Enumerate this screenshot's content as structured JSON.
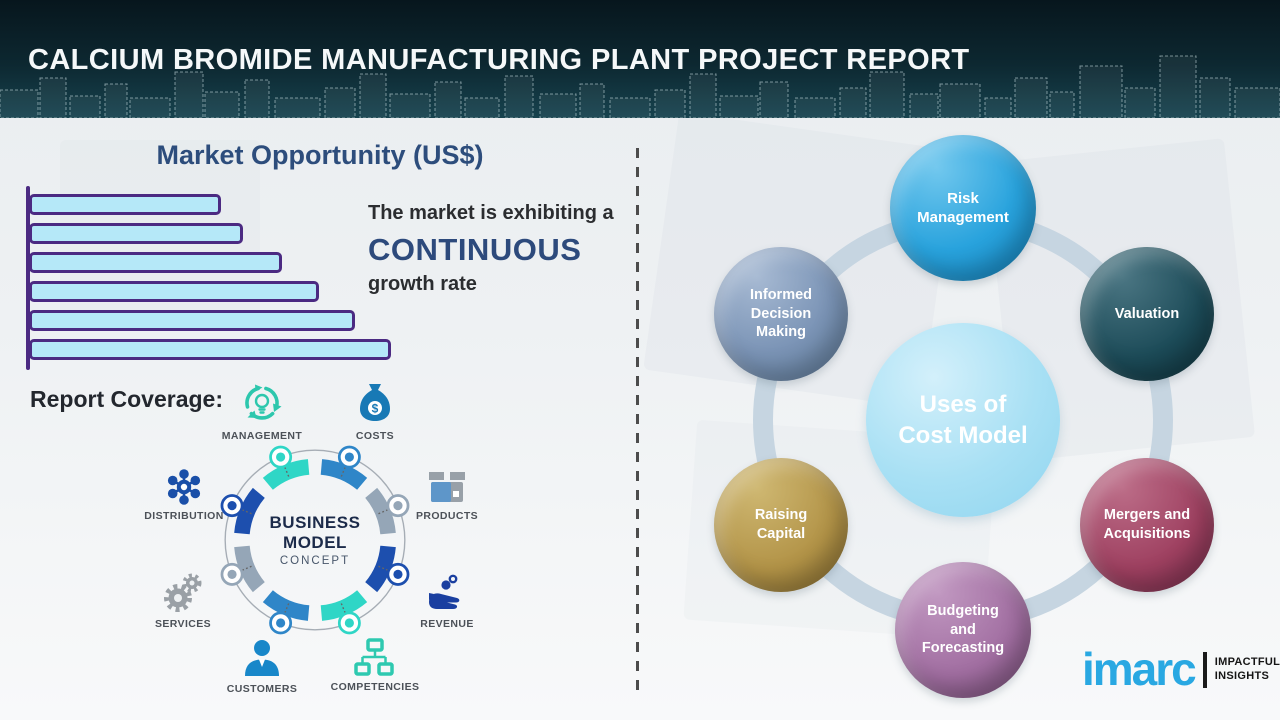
{
  "header": {
    "title": "CALCIUM BROMIDE MANUFACTURING PLANT PROJECT REPORT"
  },
  "left": {
    "section_title": "Market Opportunity (US$)",
    "note": {
      "line1": "The market is exhibiting a",
      "highlight": "CONTINUOUS",
      "line2": "growth rate"
    },
    "report_coverage_label": "Report Coverage:",
    "business_model": {
      "center_title": "BUSINESS\nMODEL",
      "center_subtitle": "CONCEPT",
      "items": [
        {
          "label": "MANAGEMENT"
        },
        {
          "label": "COSTS"
        },
        {
          "label": "DISTRIBUTION"
        },
        {
          "label": "PRODUCTS"
        },
        {
          "label": "SERVICES"
        },
        {
          "label": "REVENUE"
        },
        {
          "label": "CUSTOMERS"
        },
        {
          "label": "COMPETENCIES"
        }
      ]
    }
  },
  "chart_data": {
    "type": "bar",
    "orientation": "horizontal",
    "title": "Market Opportunity (US$)",
    "categories": [
      "",
      "",
      "",
      "",
      "",
      ""
    ],
    "values": [
      53,
      59,
      70,
      80,
      90,
      100
    ],
    "xlabel": "",
    "ylabel": "",
    "xlim": [
      0,
      100
    ],
    "grid": false,
    "legend": false,
    "bar_fill": "#b5e8f8",
    "bar_border": "#4b2a82",
    "annotation": "The market is exhibiting a CONTINUOUS growth rate"
  },
  "right": {
    "center_label": "Uses of\nCost Model",
    "center_color": "#a8e0f4",
    "nodes": [
      {
        "label": "Risk\nManagement",
        "color": "#29a3dd"
      },
      {
        "label": "Valuation",
        "color": "#1c4b58"
      },
      {
        "label": "Informed\nDecision\nMaking",
        "color": "#7b94b6"
      },
      {
        "label": "Mergers and\nAcquisitions",
        "color": "#9e4060"
      },
      {
        "label": "Raising\nCapital",
        "color": "#b29347"
      },
      {
        "label": "Budgeting\nand\nForecasting",
        "color": "#a16ea1"
      }
    ]
  },
  "logo": {
    "brand": "imarc",
    "tagline_line1": "IMPACTFUL",
    "tagline_line2": "INSIGHTS",
    "brand_color": "#29a8e2"
  },
  "colors": {
    "header_bg": "#0d2831",
    "accent_navy": "#2d4d7c",
    "bar_fill": "#b5e8f8",
    "bar_border": "#4b2a82",
    "ring": "#c6d5e1",
    "bm_teal": "#2fd6c6",
    "bm_blue": "#2f86c8",
    "bm_gray": "#95a6b7",
    "bm_royal": "#1d4fae",
    "divider": "#4c4c4c"
  }
}
